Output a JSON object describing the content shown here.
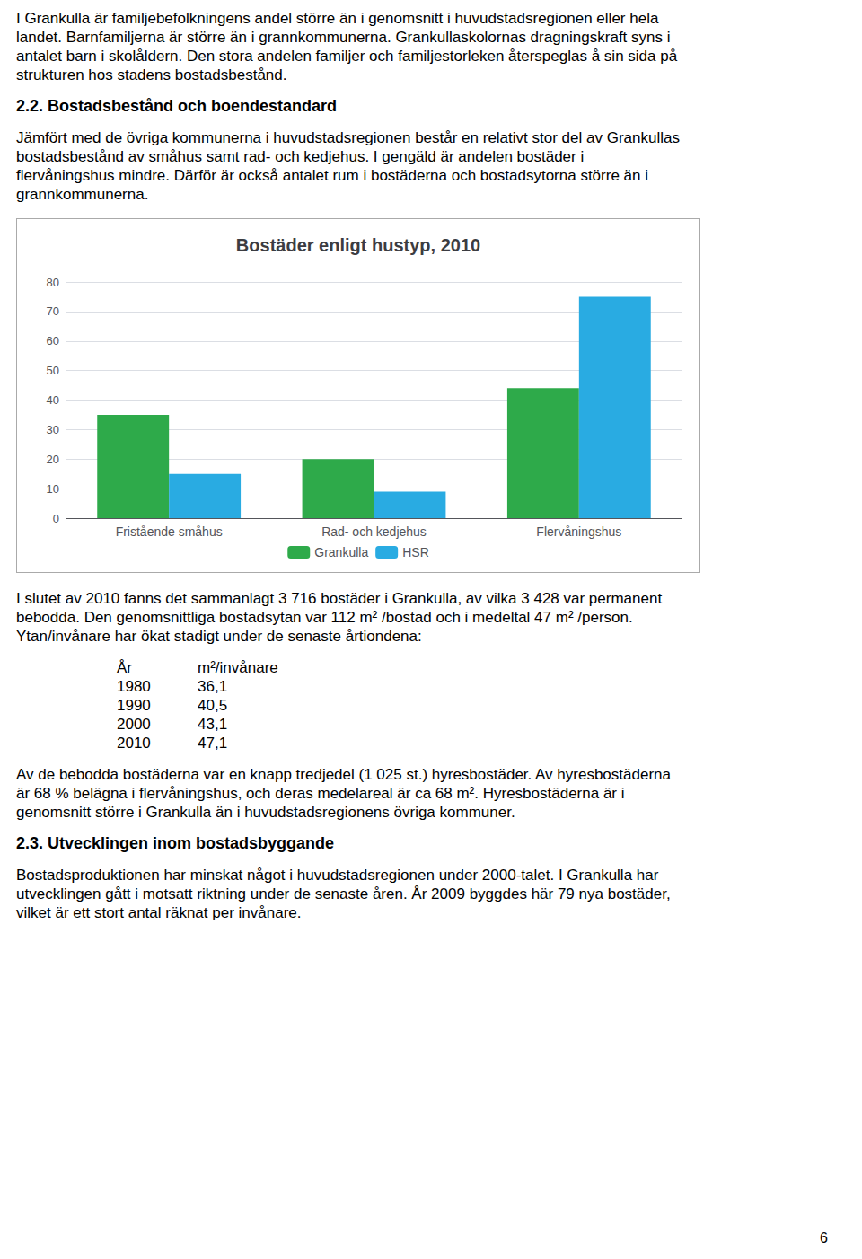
{
  "chart_data": {
    "type": "bar",
    "title": "Bostäder enligt hustyp, 2010",
    "categories": [
      "Fristående småhus",
      "Rad- och kedjehus",
      "Flervåningshus"
    ],
    "series": [
      {
        "name": "Grankulla",
        "color": "#2eaa4a",
        "values": [
          35,
          20,
          44
        ]
      },
      {
        "name": "HSR",
        "color": "#29abe2",
        "values": [
          15,
          9,
          75
        ]
      }
    ],
    "ylim": [
      0,
      80
    ],
    "yticks": [
      0,
      10,
      20,
      30,
      40,
      50,
      60,
      70,
      80
    ],
    "grid": true,
    "legend": "bottom",
    "annotations": [
      [
        "I Grankulla är familjebefolkningens andel större än i genomsnitt i huvudstadsregionen eller hela",
        "landet. Barnfamiljerna är större än i grannkommunerna. Grankullaskolornas dragningskraft syns i",
        "antalet barn i skolåldern. Den stora andelen familjer och familjestorleken återspeglas å sin sida på",
        "strukturen hos stadens bostadsbestånd."
      ],
      [
        "2.2. Bostadsbestånd och boendestandard"
      ],
      [
        "Jämfört med de övriga kommunerna i huvudstadsregionen består en relativt stor del av Grankullas",
        "bostadsbestånd av småhus samt rad- och kedjehus. I gengäld är andelen bostäder i",
        "flervåningshus mindre. Därför är också antalet rum i bostäderna och bostadsytorna större än i",
        "grannkommunerna."
      ],
      [
        "I slutet av 2010 fanns det sammanlagt 3 716 bostäder i Grankulla, av vilka 3 428 var permanent",
        "bebodda. Den genomsnittliga bostadsytan var 112 m² /bostad och i medeltal 47 m² /person.",
        "Ytan/invånare har ökat stadigt under de senaste årtiondena:"
      ],
      [
        [
          "År",
          "m²/invånare"
        ],
        [
          "1980",
          "36,1"
        ],
        [
          "1990",
          "40,5"
        ],
        [
          "2000",
          "43,1"
        ],
        [
          "2010",
          "47,1"
        ]
      ],
      [
        "Av de bebodda bostäderna var en knapp tredjedel (1 025 st.) hyresbostäder. Av hyresbostäderna",
        "är 68 % belägna i flervåningshus, och deras medelareal är ca 68 m². Hyresbostäderna är i",
        "genomsnitt större i Grankulla än i huvudstadsregionens övriga kommuner."
      ],
      [
        "2.3. Utvecklingen inom bostadsbyggande"
      ],
      [
        "Bostadsproduktionen har minskat något i huvudstadsregionen under 2000-talet. I Grankulla har",
        "utvecklingen gått i motsatt riktning under de senaste åren. År 2009 byggdes här 79 nya bostäder,",
        "vilket är ett stort antal räknat per invånare."
      ],
      [
        "6"
      ]
    ]
  }
}
